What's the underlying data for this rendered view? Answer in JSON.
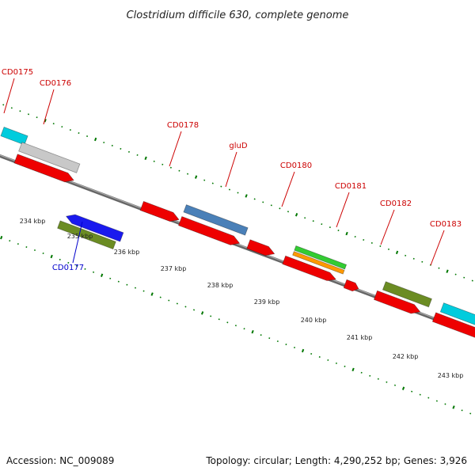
{
  "title": "Clostridium difficile 630, complete genome",
  "footer": {
    "accession": "Accession: NC_009089",
    "topology": "Topology: circular; Length: 4,290,252 bp; Genes: 3,926"
  },
  "colors": {
    "label_red": "#cc0000",
    "label_blue": "#0000cc",
    "tick_green": "#007700",
    "backbone": "#888888",
    "red": "#ee0000",
    "gray": "#c8c8c8",
    "cyan": "#00ccdd",
    "blue": "#1a1aee",
    "olive": "#6b8c23",
    "steelblue": "#4a80b8",
    "green": "#33cc33",
    "orange": "#ff9900"
  },
  "scale_labels": [
    {
      "kbp": 234,
      "text": "234 kbp"
    },
    {
      "kbp": 235,
      "text": "235 kbp"
    },
    {
      "kbp": 236,
      "text": "236 kbp"
    },
    {
      "kbp": 237,
      "text": "237 kbp"
    },
    {
      "kbp": 238,
      "text": "238 kbp"
    },
    {
      "kbp": 239,
      "text": "239 kbp"
    },
    {
      "kbp": 240,
      "text": "240 kbp"
    },
    {
      "kbp": 241,
      "text": "241 kbp"
    },
    {
      "kbp": 242,
      "text": "242 kbp"
    },
    {
      "kbp": 243,
      "text": "243 kbp"
    }
  ],
  "gene_labels": [
    {
      "text": "CD0175",
      "color": "label_red"
    },
    {
      "text": "CD0176",
      "color": "label_red"
    },
    {
      "text": "CD0177",
      "color": "label_blue"
    },
    {
      "text": "CD0178",
      "color": "label_red"
    },
    {
      "text": "gluD",
      "color": "label_red"
    },
    {
      "text": "CD0180",
      "color": "label_red"
    },
    {
      "text": "CD0181",
      "color": "label_red"
    },
    {
      "text": "CD0182",
      "color": "label_red"
    },
    {
      "text": "CD0183",
      "color": "label_red"
    }
  ],
  "features": [
    {
      "color": "cyan",
      "direction": "none"
    },
    {
      "color": "gray",
      "direction": "none"
    },
    {
      "color": "red",
      "direction": "forward"
    },
    {
      "color": "red",
      "direction": "forward"
    },
    {
      "color": "blue",
      "direction": "reverse"
    },
    {
      "color": "olive",
      "direction": "none"
    },
    {
      "color": "red",
      "direction": "forward"
    },
    {
      "color": "steelblue",
      "direction": "none"
    },
    {
      "color": "red",
      "direction": "forward"
    },
    {
      "color": "red",
      "direction": "forward"
    },
    {
      "color": "green",
      "direction": "none"
    },
    {
      "color": "orange",
      "direction": "none"
    },
    {
      "color": "red",
      "direction": "forward"
    },
    {
      "color": "red",
      "direction": "forward"
    },
    {
      "color": "olive",
      "direction": "none"
    },
    {
      "color": "red",
      "direction": "forward"
    },
    {
      "color": "cyan",
      "direction": "none"
    },
    {
      "color": "red",
      "direction": "none"
    }
  ]
}
